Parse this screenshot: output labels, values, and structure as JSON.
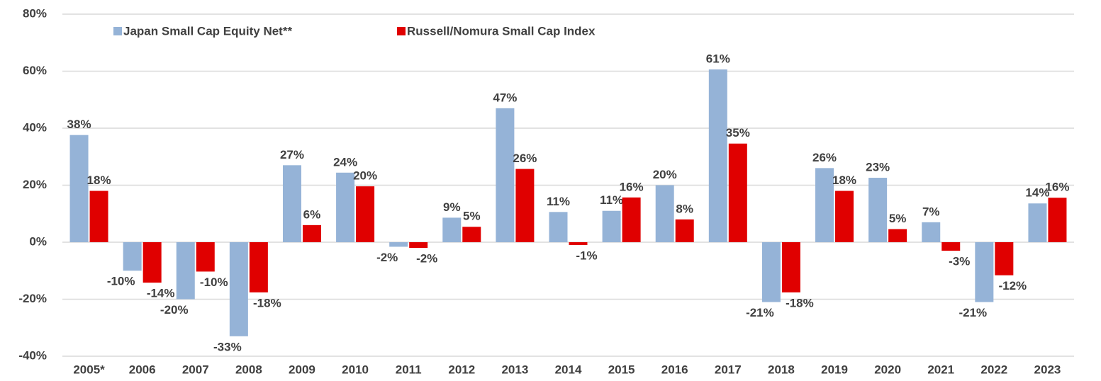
{
  "chart_data": {
    "type": "bar",
    "categories": [
      "2005*",
      "2006",
      "2007",
      "2008",
      "2009",
      "2010",
      "2011",
      "2012",
      "2013",
      "2014",
      "2015",
      "2016",
      "2017",
      "2018",
      "2019",
      "2020",
      "2021",
      "2022",
      "2023"
    ],
    "series": [
      {
        "name": "Japan Small Cap Equity Net**",
        "color": "#95b3d7",
        "values": [
          37.6,
          -10,
          -20,
          -33,
          27,
          24.4,
          -1.6,
          8.6,
          47,
          10.6,
          11,
          20,
          60.6,
          -21,
          26,
          22.6,
          7,
          -21,
          13.6
        ],
        "value_labels": [
          "38%",
          "-10%",
          "-20%",
          "-33%",
          "27%",
          "24%",
          "-2%",
          "9%",
          "47%",
          "11%",
          "11%",
          "20%",
          "61%",
          "-21%",
          "26%",
          "23%",
          "7%",
          "-21%",
          "14%"
        ]
      },
      {
        "name": "Russell/Nomura Small Cap Index",
        "color": "#e00000",
        "values": [
          18,
          -14.2,
          -10.3,
          -17.6,
          6,
          19.6,
          -2,
          5.4,
          25.7,
          -1,
          15.7,
          8,
          34.6,
          -17.6,
          18,
          4.6,
          -3,
          -11.6,
          15.6
        ],
        "value_labels": [
          "18%",
          "-14%",
          "-10%",
          "-18%",
          "6%",
          "20%",
          "-2%",
          "5%",
          "26%",
          "-1%",
          "16%",
          "8%",
          "35%",
          "-18%",
          "18%",
          "5%",
          "-3%",
          "-12%",
          "16%"
        ]
      }
    ],
    "ylim": [
      -40,
      80
    ],
    "yticks": [
      {
        "value": -40,
        "label": "-40%"
      },
      {
        "value": -20,
        "label": "-20%"
      },
      {
        "value": 0,
        "label": "0%"
      },
      {
        "value": 20,
        "label": "20%"
      },
      {
        "value": 40,
        "label": "40%"
      },
      {
        "value": 60,
        "label": "60%"
      },
      {
        "value": 80,
        "label": "80%"
      }
    ],
    "grid": true,
    "legend": "top-left"
  }
}
